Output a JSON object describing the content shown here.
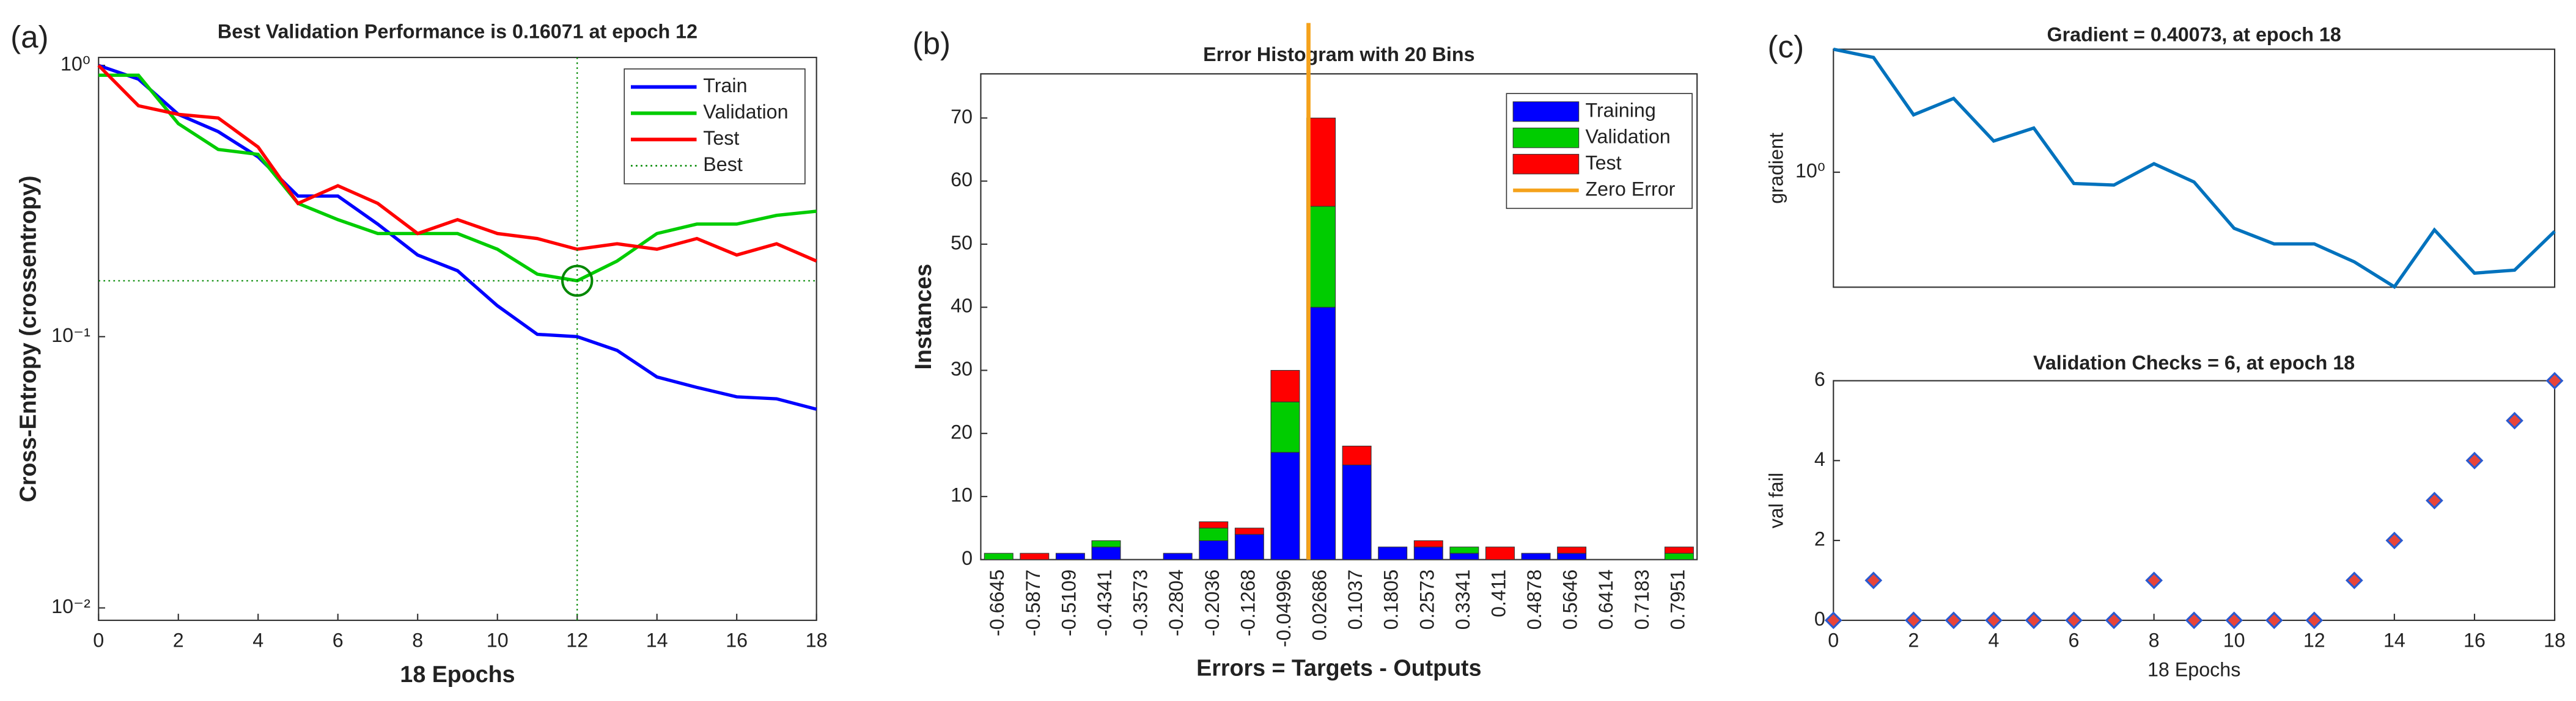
{
  "chart_data": [
    {
      "type": "line",
      "panel_label": "(a)",
      "title": "Best Validation Performance is 0.16071 at epoch 12",
      "xlabel": "18 Epochs",
      "ylabel": "Cross-Entropy  (crossentropy)",
      "log_y": true,
      "legend": "upper right",
      "x": [
        0,
        1,
        2,
        3,
        4,
        5,
        6,
        7,
        8,
        9,
        10,
        11,
        12,
        13,
        14,
        15,
        16,
        17,
        18
      ],
      "series": [
        {
          "name": "Train",
          "color": "#0000ff",
          "values": [
            1.0,
            0.89,
            0.66,
            0.57,
            0.46,
            0.33,
            0.33,
            0.26,
            0.2,
            0.175,
            0.13,
            0.102,
            0.1,
            0.089,
            0.071,
            0.065,
            0.06,
            0.059,
            0.054
          ]
        },
        {
          "name": "Validation",
          "color": "#00cc00",
          "values": [
            0.92,
            0.92,
            0.61,
            0.49,
            0.47,
            0.31,
            0.27,
            0.24,
            0.24,
            0.24,
            0.21,
            0.17,
            0.16071,
            0.19,
            0.24,
            0.26,
            0.26,
            0.28,
            0.29
          ]
        },
        {
          "name": "Test",
          "color": "#ff0000",
          "values": [
            1.0,
            0.71,
            0.66,
            0.64,
            0.5,
            0.31,
            0.36,
            0.31,
            0.24,
            0.27,
            0.24,
            0.23,
            0.21,
            0.22,
            0.21,
            0.23,
            0.2,
            0.22,
            0.19
          ]
        }
      ],
      "best": {
        "name": "Best",
        "x": 12,
        "y": 0.16071,
        "color": "#008800"
      },
      "xlim": [
        0,
        18
      ],
      "xticks": [
        0,
        2,
        4,
        6,
        8,
        10,
        12,
        14,
        16,
        18
      ],
      "ylim": [
        0.009,
        1.07
      ],
      "yticks": [
        {
          "value": 0.01,
          "label": "10⁻²"
        },
        {
          "value": 0.1,
          "label": "10⁻¹"
        },
        {
          "value": 1,
          "label": "10⁰"
        }
      ]
    },
    {
      "type": "bar",
      "stacked": true,
      "panel_label": "(b)",
      "title": "Error Histogram with 20 Bins",
      "xlabel": "Errors = Targets - Outputs",
      "ylabel": "Instances",
      "legend": "upper right",
      "categories": [
        "-0.6645",
        "-0.5877",
        "-0.5109",
        "-0.4341",
        "-0.3573",
        "-0.2804",
        "-0.2036",
        "-0.1268",
        "-0.04996",
        "0.02686",
        "0.1037",
        "0.1805",
        "0.2573",
        "0.3341",
        "0.411",
        "0.4878",
        "0.5646",
        "0.6414",
        "0.7183",
        "0.7951"
      ],
      "series": [
        {
          "name": "Training",
          "color": "#0000ff",
          "values": [
            0,
            0,
            1,
            2,
            0,
            1,
            3,
            4,
            17,
            40,
            15,
            2,
            2,
            1,
            0,
            1,
            1,
            0,
            0,
            0
          ]
        },
        {
          "name": "Validation",
          "color": "#00cc00",
          "values": [
            1,
            0,
            0,
            1,
            0,
            0,
            2,
            0,
            8,
            16,
            0,
            0,
            0,
            1,
            0,
            0,
            0,
            0,
            0,
            1
          ]
        },
        {
          "name": "Test",
          "color": "#ff0000",
          "values": [
            0,
            1,
            0,
            0,
            0,
            0,
            1,
            1,
            5,
            14,
            3,
            0,
            1,
            0,
            2,
            0,
            1,
            0,
            0,
            1
          ]
        }
      ],
      "zero_error": {
        "name": "Zero Error",
        "value": 0,
        "color": "#f5a21b"
      },
      "ylim": [
        0,
        77
      ],
      "yticks": [
        0,
        10,
        20,
        30,
        40,
        50,
        60,
        70
      ]
    },
    {
      "type": "line",
      "panel_label": "(c)",
      "title": "Gradient = 0.40073, at epoch 18",
      "ylabel": "gradient",
      "log_y": true,
      "x": [
        0,
        1,
        2,
        3,
        4,
        5,
        6,
        7,
        8,
        9,
        10,
        11,
        12,
        13,
        14,
        15,
        16,
        17,
        18
      ],
      "series": [
        {
          "color": "#0072bd",
          "values": [
            6.7,
            5.9,
            2.43,
            3.13,
            1.62,
            1.98,
            0.84,
            0.82,
            1.14,
            0.86,
            0.42,
            0.33,
            0.33,
            0.25,
            0.17,
            0.41,
            0.21,
            0.22,
            0.40073
          ]
        }
      ],
      "xlim": [
        0,
        18
      ],
      "ylim": [
        0.169,
        6.7
      ],
      "yticks": [
        {
          "value": 1,
          "label": "10⁰"
        }
      ]
    },
    {
      "type": "scatter",
      "title": "Validation Checks = 6, at epoch 18",
      "xlabel": "18 Epochs",
      "ylabel": "val fail",
      "x": [
        0,
        1,
        2,
        3,
        4,
        5,
        6,
        7,
        8,
        9,
        10,
        11,
        12,
        13,
        14,
        15,
        16,
        17,
        18
      ],
      "series": [
        {
          "color": "#e8443a",
          "edge": "#2a5ad0",
          "values": [
            0,
            1,
            0,
            0,
            0,
            0,
            0,
            0,
            1,
            0,
            0,
            0,
            0,
            1,
            2,
            3,
            4,
            5,
            6
          ]
        }
      ],
      "xlim": [
        0,
        18
      ],
      "xticks": [
        0,
        2,
        4,
        6,
        8,
        10,
        12,
        14,
        16,
        18
      ],
      "ylim": [
        0,
        6
      ],
      "yticks": [
        0,
        2,
        4,
        6
      ]
    }
  ]
}
